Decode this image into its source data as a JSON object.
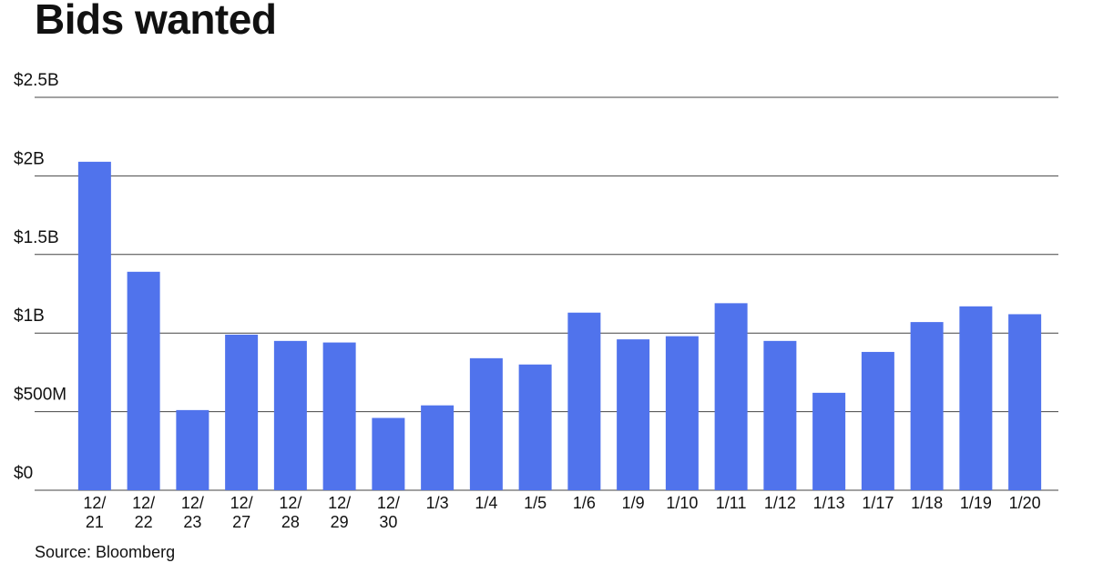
{
  "chart_data": {
    "type": "bar",
    "title": "Bids wanted",
    "source": "Source: Bloomberg",
    "categories": [
      "12/\n21",
      "12/\n22",
      "12/\n23",
      "12/\n27",
      "12/\n28",
      "12/\n29",
      "12/\n30",
      "1/3",
      "1/4",
      "1/5",
      "1/6",
      "1/9",
      "1/10",
      "1/11",
      "1/12",
      "1/13",
      "1/17",
      "1/18",
      "1/19",
      "1/20"
    ],
    "values": [
      2.09,
      1.39,
      0.51,
      0.99,
      0.95,
      0.94,
      0.46,
      0.54,
      0.84,
      0.8,
      1.13,
      0.96,
      0.98,
      1.19,
      0.95,
      0.62,
      0.88,
      1.07,
      1.17,
      1.12
    ],
    "color": "#5073ec",
    "ylim": [
      0,
      2.5
    ],
    "yticks": [
      {
        "value": 0,
        "label": "$0"
      },
      {
        "value": 0.5,
        "label": "$500M"
      },
      {
        "value": 1,
        "label": "$1B"
      },
      {
        "value": 1.5,
        "label": "$1.5B"
      },
      {
        "value": 2,
        "label": "$2B"
      },
      {
        "value": 2.5,
        "label": "$2.5B"
      }
    ],
    "grid": true
  }
}
